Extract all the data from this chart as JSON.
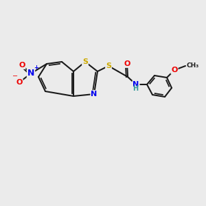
{
  "background_color": "#ebebeb",
  "bond_color": "#1a1a1a",
  "atom_colors": {
    "S": "#ccaa00",
    "N": "#0000ee",
    "O": "#ee0000",
    "H": "#339999",
    "C": "#1a1a1a"
  },
  "figsize": [
    3.0,
    3.0
  ],
  "dpi": 100
}
